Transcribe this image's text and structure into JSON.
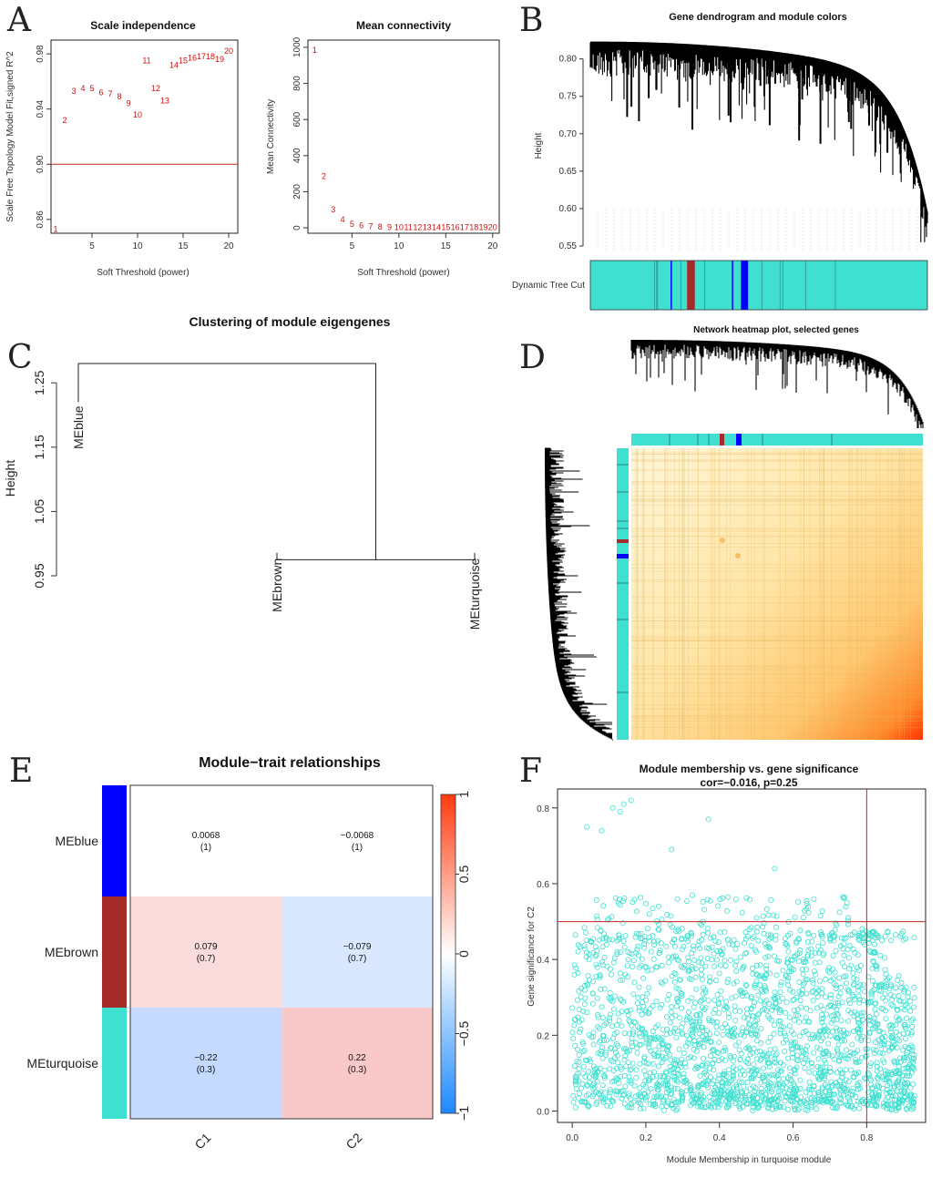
{
  "panel_labels": [
    "A",
    "B",
    "C",
    "D",
    "E",
    "F"
  ],
  "colors": {
    "turquoise": "#40e0d0",
    "brown": "#a52a2a",
    "blue": "#0000ff",
    "red_line": "#cc2222",
    "heat_low": "#fff4cc",
    "heat_high": "#ff3300",
    "neg": "#2979ff",
    "pos": "#e53935"
  },
  "chart_data": [
    {
      "id": "A1",
      "type": "scatter",
      "title": "Scale independence",
      "xlabel": "Soft Threshold (power)",
      "ylabel": "Scale Free Topology Model Fit,signed R^2",
      "xlim": [
        0.5,
        21
      ],
      "ylim": [
        0.85,
        0.99
      ],
      "xticks": [
        5,
        10,
        15,
        20
      ],
      "yticks": [
        0.86,
        0.9,
        0.94,
        0.98
      ],
      "ytick_labels": [
        "0.86",
        "0.90",
        "0.94",
        "0.98"
      ],
      "hline": 0.9,
      "points": [
        {
          "label": "1",
          "x": 1,
          "y": 0.853
        },
        {
          "label": "2",
          "x": 2,
          "y": 0.932
        },
        {
          "label": "3",
          "x": 3,
          "y": 0.953
        },
        {
          "label": "4",
          "x": 4,
          "y": 0.955
        },
        {
          "label": "5",
          "x": 5,
          "y": 0.955
        },
        {
          "label": "6",
          "x": 6,
          "y": 0.952
        },
        {
          "label": "7",
          "x": 7,
          "y": 0.951
        },
        {
          "label": "8",
          "x": 8,
          "y": 0.949
        },
        {
          "label": "9",
          "x": 9,
          "y": 0.944
        },
        {
          "label": "10",
          "x": 10,
          "y": 0.936
        },
        {
          "label": "11",
          "x": 11,
          "y": 0.975
        },
        {
          "label": "12",
          "x": 12,
          "y": 0.955
        },
        {
          "label": "13",
          "x": 13,
          "y": 0.946
        },
        {
          "label": "14",
          "x": 14,
          "y": 0.972
        },
        {
          "label": "15",
          "x": 15,
          "y": 0.975
        },
        {
          "label": "16",
          "x": 16,
          "y": 0.977
        },
        {
          "label": "17",
          "x": 17,
          "y": 0.978
        },
        {
          "label": "18",
          "x": 18,
          "y": 0.978
        },
        {
          "label": "19",
          "x": 19,
          "y": 0.976
        },
        {
          "label": "20",
          "x": 20,
          "y": 0.982
        }
      ]
    },
    {
      "id": "A2",
      "type": "scatter",
      "title": "Mean connectivity",
      "xlabel": "Soft Threshold (power)",
      "ylabel": "Mean Connectivity",
      "xlim": [
        0.3,
        20.7
      ],
      "ylim": [
        -30,
        1040
      ],
      "xticks": [
        5,
        10,
        15,
        20
      ],
      "yticks": [
        0,
        200,
        400,
        600,
        800,
        1000
      ],
      "points": [
        {
          "label": "1",
          "x": 1,
          "y": 985
        },
        {
          "label": "2",
          "x": 2,
          "y": 285
        },
        {
          "label": "3",
          "x": 3,
          "y": 100
        },
        {
          "label": "4",
          "x": 4,
          "y": 45
        },
        {
          "label": "5",
          "x": 5,
          "y": 20
        },
        {
          "label": "6",
          "x": 6,
          "y": 12
        },
        {
          "label": "7",
          "x": 7,
          "y": 8
        },
        {
          "label": "8",
          "x": 8,
          "y": 5
        },
        {
          "label": "9",
          "x": 9,
          "y": 3
        },
        {
          "label": "10",
          "x": 10,
          "y": 2
        },
        {
          "label": "11",
          "x": 11,
          "y": 2
        },
        {
          "label": "12",
          "x": 12,
          "y": 2
        },
        {
          "label": "13",
          "x": 13,
          "y": 2
        },
        {
          "label": "14",
          "x": 14,
          "y": 2
        },
        {
          "label": "15",
          "x": 15,
          "y": 2
        },
        {
          "label": "16",
          "x": 16,
          "y": 2
        },
        {
          "label": "17",
          "x": 17,
          "y": 2
        },
        {
          "label": "18",
          "x": 18,
          "y": 2
        },
        {
          "label": "19",
          "x": 19,
          "y": 2
        },
        {
          "label": "20",
          "x": 20,
          "y": 2
        }
      ]
    },
    {
      "id": "B",
      "type": "dendrogram",
      "title": "Gene dendrogram and module colors",
      "ylabel": "Height",
      "ylim": [
        0.55,
        0.83
      ],
      "yticks": [
        0.55,
        0.6,
        0.65,
        0.7,
        0.75,
        0.8
      ],
      "ytick_labels": [
        "0.55",
        "0.60",
        "0.65",
        "0.70",
        "0.75",
        "0.80"
      ],
      "color_row_label": "Dynamic Tree Cut",
      "module_bands": [
        {
          "module": "brown",
          "start": 0.287,
          "end": 0.31
        },
        {
          "module": "blue",
          "start": 0.447,
          "end": 0.468
        },
        {
          "module": "blue",
          "start": 0.42,
          "end": 0.424
        },
        {
          "module": "blue",
          "start": 0.238,
          "end": 0.241
        }
      ]
    },
    {
      "id": "C",
      "type": "dendrogram",
      "title": "Clustering of module eigengenes",
      "ylabel": "Height",
      "ylim": [
        0.95,
        1.29
      ],
      "yticks": [
        0.95,
        1.05,
        1.15,
        1.25
      ],
      "ytick_labels": [
        "0.95",
        "1.05",
        "1.15",
        "1.25"
      ],
      "leaves": [
        "MEblue",
        "MEbrown",
        "MEturquoise"
      ],
      "merges": [
        {
          "items": [
            "MEbrown",
            "MEturquoise"
          ],
          "height": 0.975
        },
        {
          "items": [
            "MEblue",
            "MEbrown+MEturquoise"
          ],
          "height": 1.28
        }
      ]
    },
    {
      "id": "D",
      "type": "heatmap",
      "title": "Network heatmap plot, selected genes"
    },
    {
      "id": "E",
      "type": "heatmap",
      "title": "Module−trait relationships",
      "rows": [
        "MEblue",
        "MEbrown",
        "MEturquoise"
      ],
      "columns": [
        "C1",
        "C2"
      ],
      "values": [
        [
          0.0068,
          -0.0068
        ],
        [
          0.079,
          -0.079
        ],
        [
          -0.22,
          0.22
        ]
      ],
      "cell_text": [
        [
          "0.0068",
          "−0.0068"
        ],
        [
          "0.079",
          "−0.079"
        ],
        [
          "−0.22",
          "0.22"
        ]
      ],
      "pvalues": [
        [
          "(1)",
          "(1)"
        ],
        [
          "(0.7)",
          "(0.7)"
        ],
        [
          "(0.3)",
          "(0.3)"
        ]
      ],
      "scale": {
        "min": -1,
        "max": 1,
        "ticks": [
          -1,
          -0.5,
          0,
          0.5,
          1
        ],
        "tick_labels": [
          "−1",
          "−0.5",
          "0",
          "0.5",
          "1"
        ]
      }
    },
    {
      "id": "F",
      "type": "scatter",
      "title": "Module membership vs. gene significance",
      "subtitle": "cor=−0.016, p=0.25",
      "xlabel": "Module Membership in turquoise module",
      "ylabel": "Gene significance for  C2",
      "xlim": [
        -0.04,
        0.96
      ],
      "ylim": [
        -0.03,
        0.85
      ],
      "xticks": [
        0.0,
        0.2,
        0.4,
        0.6,
        0.8
      ],
      "xtick_labels": [
        "0.0",
        "0.2",
        "0.4",
        "0.6",
        "0.8"
      ],
      "yticks": [
        0.0,
        0.2,
        0.4,
        0.6,
        0.8
      ],
      "ytick_labels": [
        "0.0",
        "0.2",
        "0.4",
        "0.6",
        "0.8"
      ],
      "vline": 0.8,
      "hline": 0.5,
      "n_points_approx": 2400,
      "highlight_points": [
        {
          "x": 0.16,
          "y": 0.82
        },
        {
          "x": 0.14,
          "y": 0.81
        },
        {
          "x": 0.11,
          "y": 0.8
        },
        {
          "x": 0.13,
          "y": 0.79
        },
        {
          "x": 0.37,
          "y": 0.77
        },
        {
          "x": 0.04,
          "y": 0.75
        },
        {
          "x": 0.08,
          "y": 0.74
        },
        {
          "x": 0.27,
          "y": 0.69
        },
        {
          "x": 0.55,
          "y": 0.64
        },
        {
          "x": 0.75,
          "y": 0.51
        }
      ]
    }
  ]
}
